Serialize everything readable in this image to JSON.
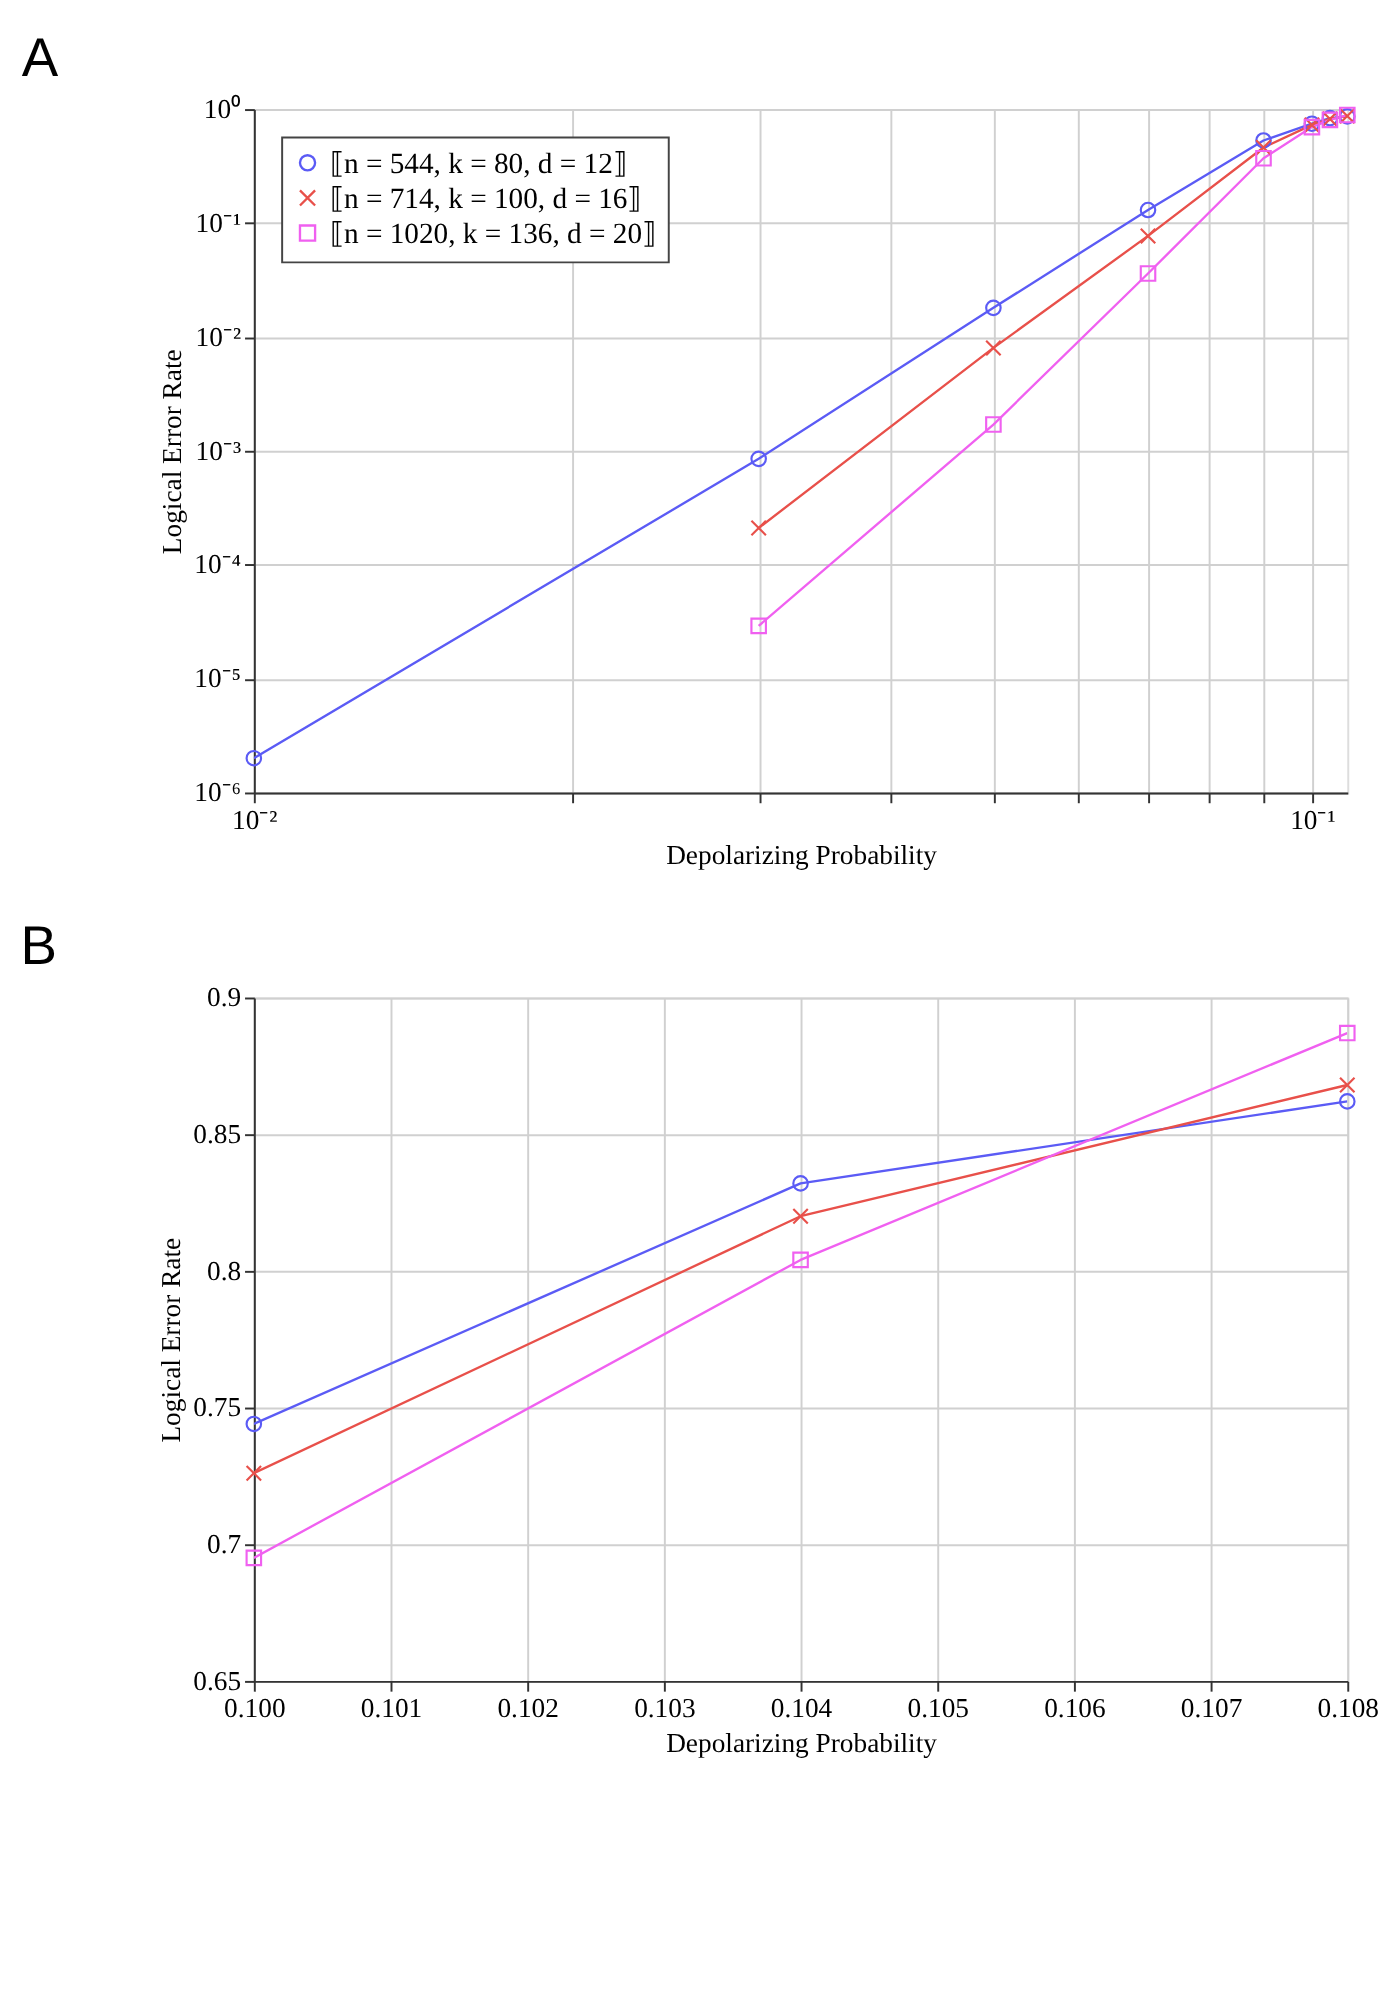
{
  "chart_data": [
    {
      "type": "line",
      "title": "A",
      "xlabel": "Depolarizing Probability",
      "ylabel": "Logical Error Rate",
      "log": "xy",
      "grid": true,
      "legend": "top left",
      "xlim": [
        0.01,
        0.108
      ],
      "ylim": [
        1e-06,
        1
      ],
      "xticks": [
        {
          "value": 0.01,
          "label": "10⁻²"
        },
        {
          "value": 0.02,
          "label": null
        },
        {
          "value": 0.03,
          "label": null
        },
        {
          "value": 0.04,
          "label": null
        },
        {
          "value": 0.05,
          "label": null
        },
        {
          "value": 0.06,
          "label": null
        },
        {
          "value": 0.07,
          "label": null
        },
        {
          "value": 0.08,
          "label": null
        },
        {
          "value": 0.09,
          "label": null
        },
        {
          "value": 0.1,
          "label": "10⁻¹"
        }
      ],
      "yticks": [
        {
          "value": 1e-06,
          "label": "10⁻⁶"
        },
        {
          "value": 1e-05,
          "label": "10⁻⁵"
        },
        {
          "value": 0.0001,
          "label": "10⁻⁴"
        },
        {
          "value": 0.001,
          "label": "10⁻³"
        },
        {
          "value": 0.01,
          "label": "10⁻²"
        },
        {
          "value": 0.1,
          "label": "10⁻¹"
        },
        {
          "value": 1,
          "label": "10⁰"
        }
      ],
      "series": [
        {
          "name": "⟦n = 544, k = 80, d = 12⟧",
          "color": "#5b5bf5",
          "marker": "circle",
          "x": [
            0.01,
            0.03,
            0.05,
            0.07,
            0.09,
            0.1,
            0.104,
            0.108
          ],
          "values": [
            2e-06,
            0.00085,
            0.018,
            0.13,
            0.53,
            0.744,
            0.832,
            0.862
          ]
        },
        {
          "name": "⟦n = 714, k = 100, d = 16⟧",
          "color": "#e8504a",
          "marker": "cross",
          "x": [
            0.03,
            0.05,
            0.07,
            0.09,
            0.1,
            0.104,
            0.108
          ],
          "values": [
            0.00021,
            0.008,
            0.077,
            0.46,
            0.726,
            0.82,
            0.868
          ]
        },
        {
          "name": "⟦n = 1020, k = 136, d = 20⟧",
          "color": "#f060f0",
          "marker": "square",
          "x": [
            0.03,
            0.05,
            0.07,
            0.09,
            0.1,
            0.104,
            0.108
          ],
          "values": [
            2.9e-05,
            0.0017,
            0.036,
            0.37,
            0.695,
            0.804,
            0.887
          ]
        }
      ]
    },
    {
      "type": "line",
      "title": "B",
      "xlabel": "Depolarizing Probability",
      "ylabel": "Logical Error Rate",
      "grid": true,
      "legend": "top left",
      "xlim": [
        0.1,
        0.108
      ],
      "ylim": [
        0.65,
        0.9
      ],
      "xticks": [
        {
          "value": 0.1,
          "label": "0.100"
        },
        0.101,
        0.102,
        0.103,
        0.104,
        0.105,
        0.106,
        0.107,
        0.108
      ],
      "yticks": [
        0.65,
        0.7,
        0.75,
        0.8,
        0.85,
        0.9
      ],
      "series": [
        {
          "name": "⟦n = 544, k = 80, d = 12⟧",
          "color": "#5b5bf5",
          "marker": "circle",
          "x": [
            0.1,
            0.104,
            0.108
          ],
          "values": [
            0.744,
            0.832,
            0.862
          ]
        },
        {
          "name": "⟦n = 714, k = 100, d = 16⟧",
          "color": "#e8504a",
          "marker": "cross",
          "x": [
            0.1,
            0.104,
            0.108
          ],
          "values": [
            0.726,
            0.82,
            0.868
          ]
        },
        {
          "name": "⟦n = 1020, k = 136, d = 20⟧",
          "color": "#f060f0",
          "marker": "square",
          "x": [
            0.1,
            0.104,
            0.108
          ],
          "values": [
            0.695,
            0.804,
            0.887
          ]
        }
      ]
    }
  ]
}
